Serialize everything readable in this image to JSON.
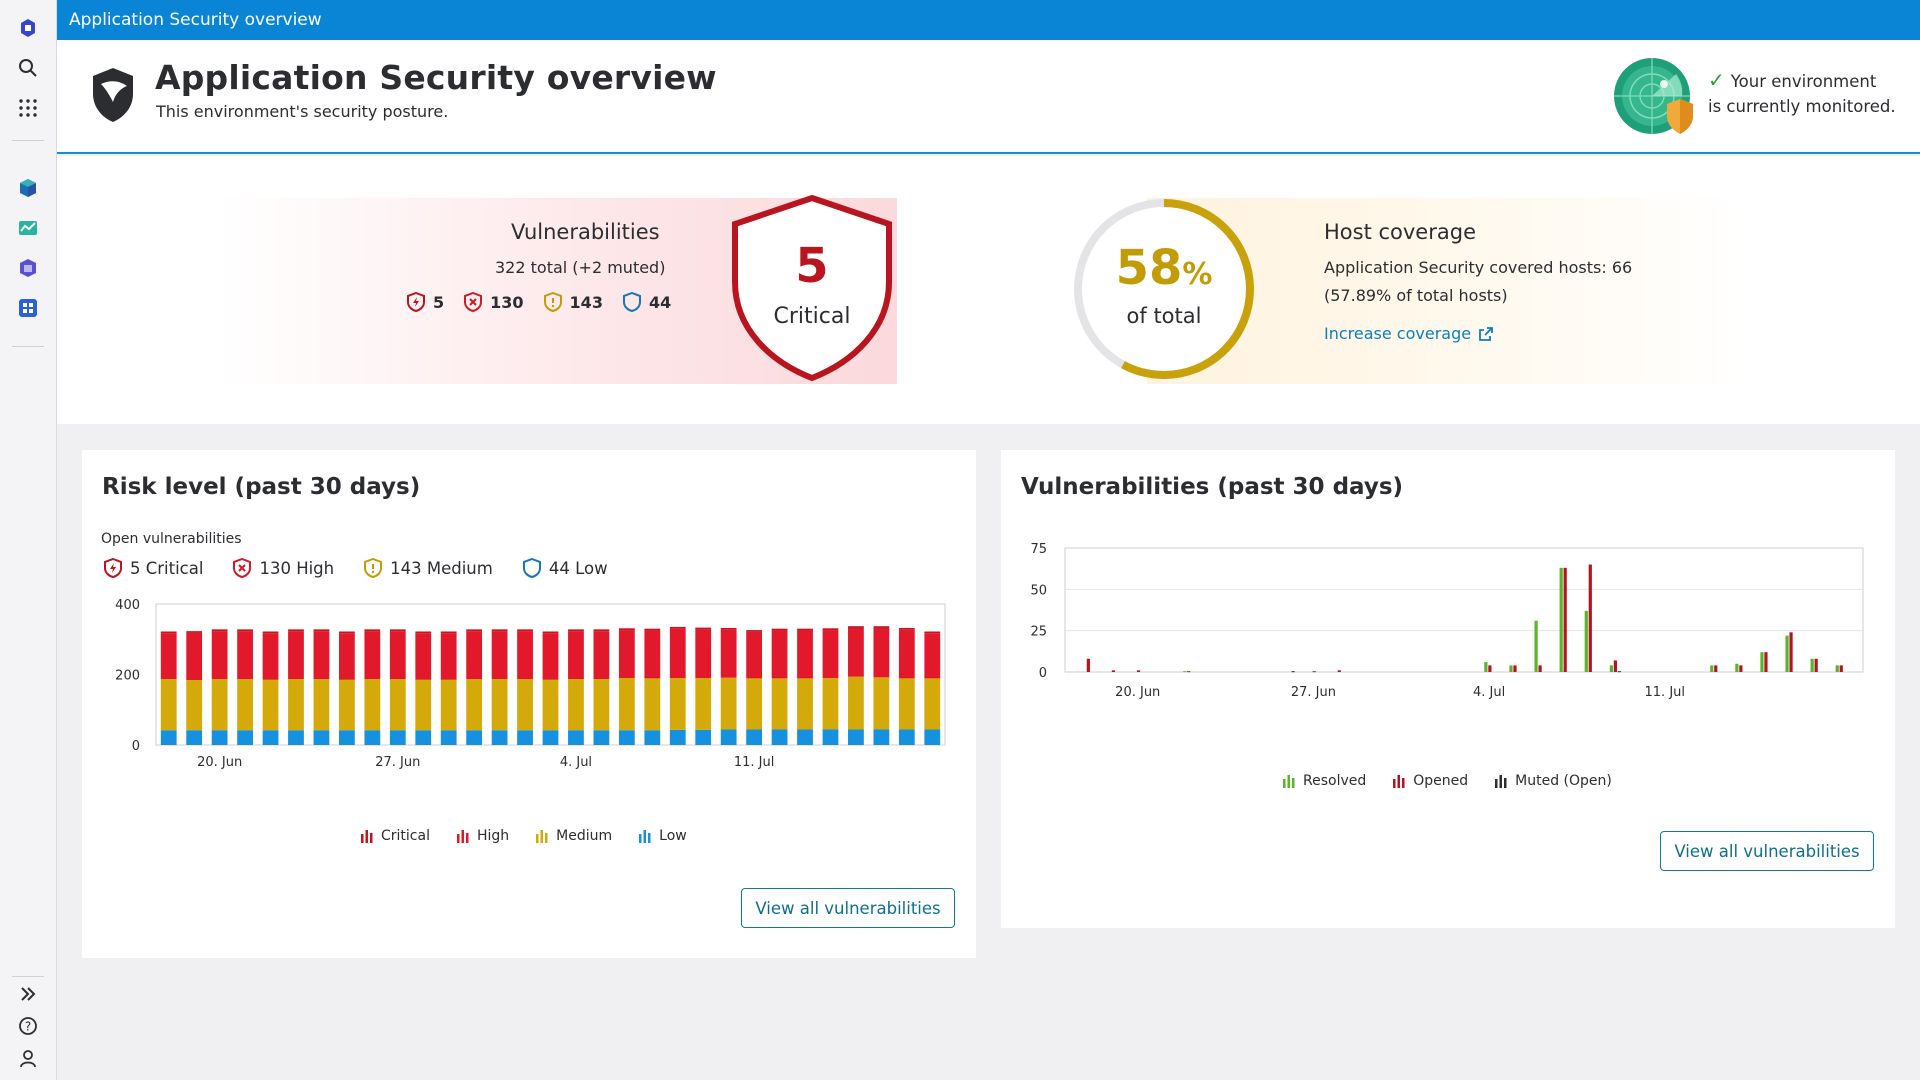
{
  "window_title": "Application Security overview",
  "header": {
    "title": "Application Security overview",
    "subtitle": "This environment's security posture.",
    "status_line1": "Your environment",
    "status_line2": "is currently monitored."
  },
  "vulnerabilities": {
    "title": "Vulnerabilities",
    "total": "322 total (+2 muted)",
    "critical": "5",
    "high": "130",
    "medium": "143",
    "low": "44",
    "shield_number": "5",
    "shield_label": "Critical"
  },
  "host_coverage": {
    "percent_number": "58",
    "percent_sign": "%",
    "percent_value": 0.5789,
    "label": "of total",
    "title": "Host coverage",
    "line1": "Application Security covered hosts: 66",
    "line2": "(57.89% of total hosts)",
    "link": "Increase coverage"
  },
  "risk_card": {
    "title": "Risk level (past 30 days)",
    "open_label": "Open vulnerabilities",
    "severity_items": [
      "5 Critical",
      "130 High",
      "143 Medium",
      "44 Low"
    ],
    "button": "View all vulnerabilities"
  },
  "vuln_card": {
    "title": "Vulnerabilities (past 30 days)",
    "button": "View all vulnerabilities"
  },
  "colors": {
    "critical": "#c4151f",
    "high": "#e2192a",
    "medium": "#d4a90a",
    "low": "#1591e0",
    "resolved": "#5ab42c",
    "opened": "#b8121e",
    "muted": "#2c2d31",
    "accent": "#0a85d6"
  },
  "chart_data": [
    {
      "type": "bar",
      "stacked": true,
      "x_tick_labels": [
        "20. Jun",
        "27. Jun",
        "4. Jul",
        "11. Jul"
      ],
      "ylim": [
        0,
        400
      ],
      "yticks": [
        0,
        200,
        400
      ],
      "series": [
        {
          "name": "Low",
          "values": [
            42,
            42,
            42,
            42,
            42,
            42,
            42,
            42,
            42,
            42,
            42,
            42,
            42,
            42,
            42,
            42,
            42,
            42,
            42,
            42,
            43,
            43,
            44,
            44,
            44,
            44,
            44,
            44,
            44,
            44,
            44
          ]
        },
        {
          "name": "Medium",
          "values": [
            145,
            142,
            145,
            145,
            143,
            145,
            145,
            143,
            145,
            145,
            143,
            143,
            145,
            145,
            145,
            143,
            145,
            145,
            148,
            147,
            147,
            147,
            147,
            145,
            145,
            145,
            146,
            150,
            148,
            145,
            145
          ]
        },
        {
          "name": "High",
          "values": [
            130,
            134,
            136,
            136,
            132,
            136,
            136,
            132,
            136,
            136,
            132,
            132,
            136,
            136,
            136,
            132,
            136,
            136,
            136,
            136,
            140,
            138,
            136,
            132,
            136,
            136,
            136,
            138,
            140,
            138,
            128
          ]
        },
        {
          "name": "Critical",
          "values": [
            5,
            5,
            5,
            5,
            5,
            5,
            5,
            5,
            5,
            5,
            5,
            5,
            5,
            5,
            5,
            5,
            5,
            5,
            5,
            5,
            5,
            5,
            5,
            5,
            5,
            5,
            5,
            5,
            5,
            5,
            5
          ]
        }
      ],
      "legend": [
        "Critical",
        "High",
        "Medium",
        "Low"
      ]
    },
    {
      "type": "bar",
      "x_tick_labels": [
        "20. Jun",
        "27. Jun",
        "4. Jul",
        "11. Jul"
      ],
      "ylim": [
        0,
        75
      ],
      "yticks": [
        0,
        25,
        50,
        75
      ],
      "series": [
        {
          "name": "Resolved",
          "values": [
            0,
            0,
            0,
            0,
            0.5,
            0,
            0,
            0,
            0,
            0,
            0,
            0,
            0,
            0,
            0,
            0,
            6,
            4,
            31,
            63,
            37,
            4,
            0,
            0,
            0,
            4,
            5,
            12,
            22,
            8,
            4
          ]
        },
        {
          "name": "Opened",
          "values": [
            8,
            1,
            1,
            0,
            0.5,
            0,
            0,
            0,
            0,
            0.5,
            1,
            0,
            0,
            0,
            0,
            0,
            4,
            4,
            4,
            63,
            65,
            7,
            0,
            0,
            0,
            4,
            4,
            12,
            24,
            8,
            4
          ]
        },
        {
          "name": "Muted (Open)",
          "values": [
            0,
            0,
            0,
            0,
            0,
            0,
            0,
            0,
            0.5,
            0,
            0,
            0,
            0,
            0,
            0,
            0,
            0,
            0,
            0,
            0,
            0,
            0.5,
            0,
            0,
            0,
            0,
            0,
            0,
            0,
            0,
            0
          ]
        }
      ],
      "legend": [
        "Resolved",
        "Opened",
        "Muted (Open)"
      ]
    }
  ]
}
